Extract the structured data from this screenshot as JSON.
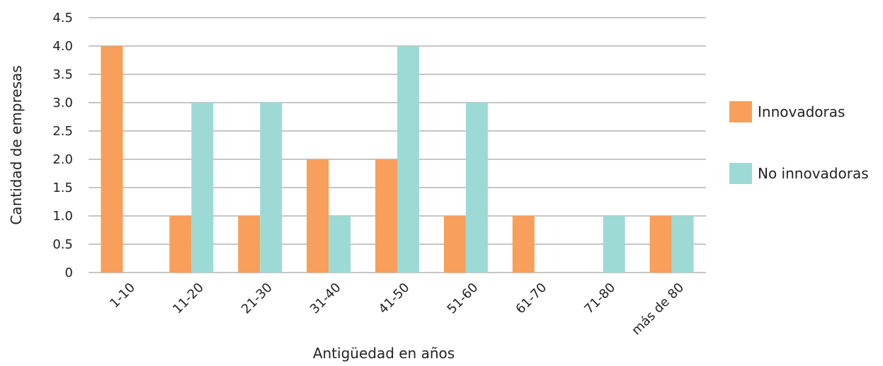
{
  "chart_data": {
    "type": "bar",
    "title": "",
    "xlabel": "Antigüedad en años",
    "ylabel": "Cantidad de empresas",
    "categories": [
      "1-10",
      "11-20",
      "21-30",
      "31-40",
      "41-50",
      "51-60",
      "61-70",
      "71-80",
      "más de 80"
    ],
    "series": [
      {
        "name": "Innovadoras",
        "color": "#f79f5b",
        "values": [
          4,
          1,
          1,
          2,
          2,
          1,
          1,
          0,
          1
        ]
      },
      {
        "name": "No innovadoras",
        "color": "#9ddad6",
        "values": [
          0,
          3,
          3,
          1,
          4,
          3,
          0,
          1,
          1
        ]
      }
    ],
    "ylim": [
      0,
      4.5
    ],
    "yticks": [
      "0",
      "0.5",
      "1.0",
      "1.5",
      "2.0",
      "2.5",
      "3.0",
      "3.5",
      "4.0",
      "4.5"
    ],
    "grid": true,
    "legend_position": "right"
  }
}
